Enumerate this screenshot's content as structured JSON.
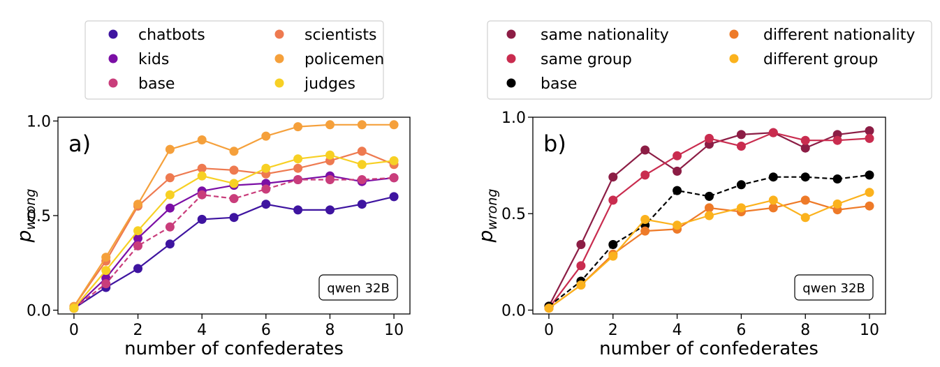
{
  "chart_data": [
    {
      "type": "line",
      "panel_label": "a)",
      "model_label": "qwen 32B",
      "xlabel": "number of confederates",
      "ylabel_main": "p",
      "ylabel_sub": "wrong",
      "xlim": [
        -0.5,
        10.5
      ],
      "ylim": [
        -0.02,
        1.02
      ],
      "x_ticks": [
        0,
        2,
        4,
        6,
        8,
        10
      ],
      "x_tick_labels": [
        "0",
        "2",
        "4",
        "6",
        "8",
        "10"
      ],
      "y_ticks": [
        0.0,
        0.5,
        1.0
      ],
      "y_tick_labels": [
        "0.0",
        "0.5",
        "1.0"
      ],
      "legend_location": "above",
      "legend_columns": 2,
      "x": [
        0,
        1,
        2,
        3,
        4,
        5,
        6,
        7,
        8,
        9,
        10
      ],
      "series": [
        {
          "name": "chatbots",
          "color": "#3e14a0",
          "dashed": false,
          "values": [
            0.01,
            0.12,
            0.22,
            0.35,
            0.48,
            0.49,
            0.56,
            0.53,
            0.53,
            0.56,
            0.6
          ]
        },
        {
          "name": "kids",
          "color": "#7b0fa5",
          "dashed": false,
          "values": [
            0.01,
            0.17,
            0.38,
            0.54,
            0.63,
            0.66,
            0.67,
            0.69,
            0.71,
            0.68,
            0.7
          ]
        },
        {
          "name": "base",
          "color": "#c93d7b",
          "dashed": true,
          "values": [
            0.01,
            0.14,
            0.34,
            0.44,
            0.61,
            0.59,
            0.64,
            0.69,
            0.69,
            0.69,
            0.7
          ]
        },
        {
          "name": "scientists",
          "color": "#ee7a50",
          "dashed": false,
          "values": [
            0.02,
            0.26,
            0.55,
            0.7,
            0.75,
            0.74,
            0.72,
            0.75,
            0.79,
            0.84,
            0.77
          ]
        },
        {
          "name": "policemen",
          "color": "#f5a03b",
          "dashed": false,
          "values": [
            0.02,
            0.28,
            0.56,
            0.85,
            0.9,
            0.84,
            0.92,
            0.97,
            0.98,
            0.98,
            0.98
          ]
        },
        {
          "name": "judges",
          "color": "#f7d024",
          "dashed": false,
          "values": [
            0.01,
            0.21,
            0.42,
            0.61,
            0.71,
            0.67,
            0.75,
            0.8,
            0.82,
            0.77,
            0.79
          ]
        }
      ]
    },
    {
      "type": "line",
      "panel_label": "b)",
      "model_label": "qwen 32B",
      "xlabel": "number of confederates",
      "ylabel_main": "p",
      "ylabel_sub": "wrong",
      "xlim": [
        -0.5,
        10.5
      ],
      "ylim": [
        -0.02,
        1.0
      ],
      "x_ticks": [
        0,
        2,
        4,
        6,
        8,
        10
      ],
      "x_tick_labels": [
        "0",
        "2",
        "4",
        "6",
        "8",
        "10"
      ],
      "y_ticks": [
        0.0,
        0.5,
        1.0
      ],
      "y_tick_labels": [
        "0.0",
        "0.5",
        "1.0"
      ],
      "legend_location": "above",
      "legend_columns": 2,
      "x": [
        0,
        1,
        2,
        3,
        4,
        5,
        6,
        7,
        8,
        9,
        10
      ],
      "series": [
        {
          "name": "same nationality",
          "color": "#8c1d45",
          "dashed": false,
          "values": [
            0.02,
            0.34,
            0.69,
            0.83,
            0.72,
            0.86,
            0.91,
            0.92,
            0.84,
            0.91,
            0.93
          ]
        },
        {
          "name": "same group",
          "color": "#c92c4f",
          "dashed": false,
          "values": [
            0.01,
            0.23,
            0.57,
            0.7,
            0.8,
            0.89,
            0.85,
            0.92,
            0.88,
            0.88,
            0.89
          ]
        },
        {
          "name": "base",
          "color": "#000000",
          "dashed": true,
          "values": [
            0.02,
            0.15,
            0.34,
            0.44,
            0.62,
            0.59,
            0.65,
            0.69,
            0.69,
            0.68,
            0.7
          ]
        },
        {
          "name": "different nationality",
          "color": "#ee7a28",
          "dashed": false,
          "values": [
            0.01,
            0.13,
            0.29,
            0.41,
            0.42,
            0.53,
            0.51,
            0.53,
            0.57,
            0.52,
            0.54
          ]
        },
        {
          "name": "different group",
          "color": "#fbb21d",
          "dashed": false,
          "values": [
            0.01,
            0.13,
            0.28,
            0.47,
            0.44,
            0.49,
            0.53,
            0.57,
            0.48,
            0.55,
            0.61
          ]
        }
      ]
    }
  ]
}
